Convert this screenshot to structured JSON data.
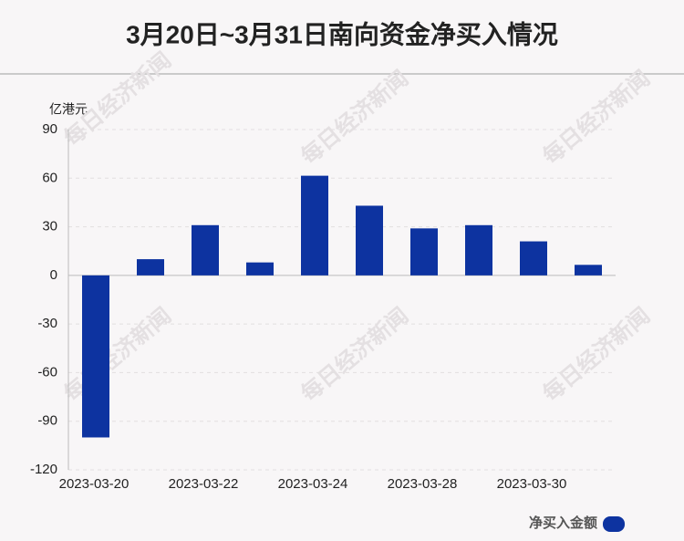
{
  "chart_data": {
    "type": "bar",
    "title": "3月20日~3月31日南向资金净买入情况",
    "y_label": "亿港元",
    "watermark": "每日经济新闻",
    "categories": [
      "2023-03-20",
      null,
      "2023-03-22",
      null,
      "2023-03-24",
      null,
      "2023-03-28",
      null,
      "2023-03-30",
      null
    ],
    "series": [
      {
        "name": "净买入金额",
        "color": "#0d33a0",
        "values": [
          -100,
          10,
          31,
          8,
          61.5,
          43,
          29,
          31,
          21,
          6.5
        ]
      }
    ],
    "ylim": [
      -120,
      90
    ],
    "yticks": [
      -120,
      -90,
      -60,
      -30,
      0,
      30,
      60,
      90
    ],
    "grid": true,
    "legend": "bottom-right"
  }
}
